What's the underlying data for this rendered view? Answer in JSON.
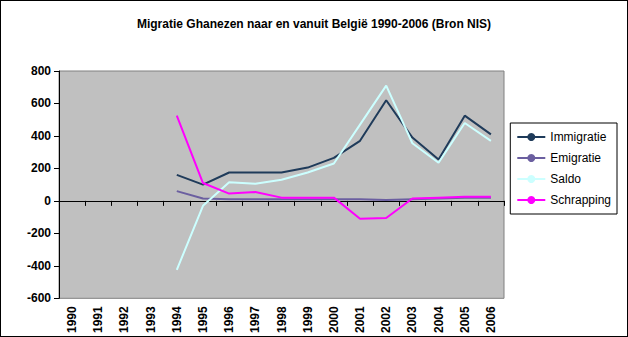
{
  "chart_data": {
    "type": "line",
    "title": "Migratie Ghanezen naar en vanuit België 1990-2006 (Bron NIS)",
    "categories": [
      "1990",
      "1991",
      "1992",
      "1993",
      "1994",
      "1995",
      "1996",
      "1997",
      "1998",
      "1999",
      "2000",
      "2001",
      "2002",
      "2003",
      "2004",
      "2005",
      "2006"
    ],
    "series": [
      {
        "name": "Immigratie",
        "color": "#1f3b5a",
        "values": [
          null,
          null,
          null,
          null,
          160,
          100,
          175,
          175,
          175,
          205,
          265,
          370,
          620,
          390,
          255,
          525,
          410
        ]
      },
      {
        "name": "Emigratie",
        "color": "#6b5fa0",
        "values": [
          null,
          null,
          null,
          null,
          60,
          15,
          10,
          10,
          10,
          10,
          10,
          10,
          5,
          10,
          15,
          20,
          20
        ]
      },
      {
        "name": "Saldo",
        "color": "#ccffff",
        "values": [
          null,
          null,
          null,
          null,
          -425,
          -30,
          115,
          105,
          130,
          175,
          230,
          470,
          710,
          355,
          235,
          480,
          370
        ]
      },
      {
        "name": "Schrapping",
        "color": "#ff00ff",
        "values": [
          null,
          null,
          null,
          null,
          525,
          110,
          45,
          55,
          20,
          20,
          20,
          -110,
          -105,
          15,
          20,
          25,
          25
        ]
      }
    ],
    "ylim": [
      -600,
      800
    ],
    "yticks": [
      -600,
      -400,
      -200,
      0,
      200,
      400,
      600,
      800
    ],
    "grid": false,
    "legend": "right"
  }
}
